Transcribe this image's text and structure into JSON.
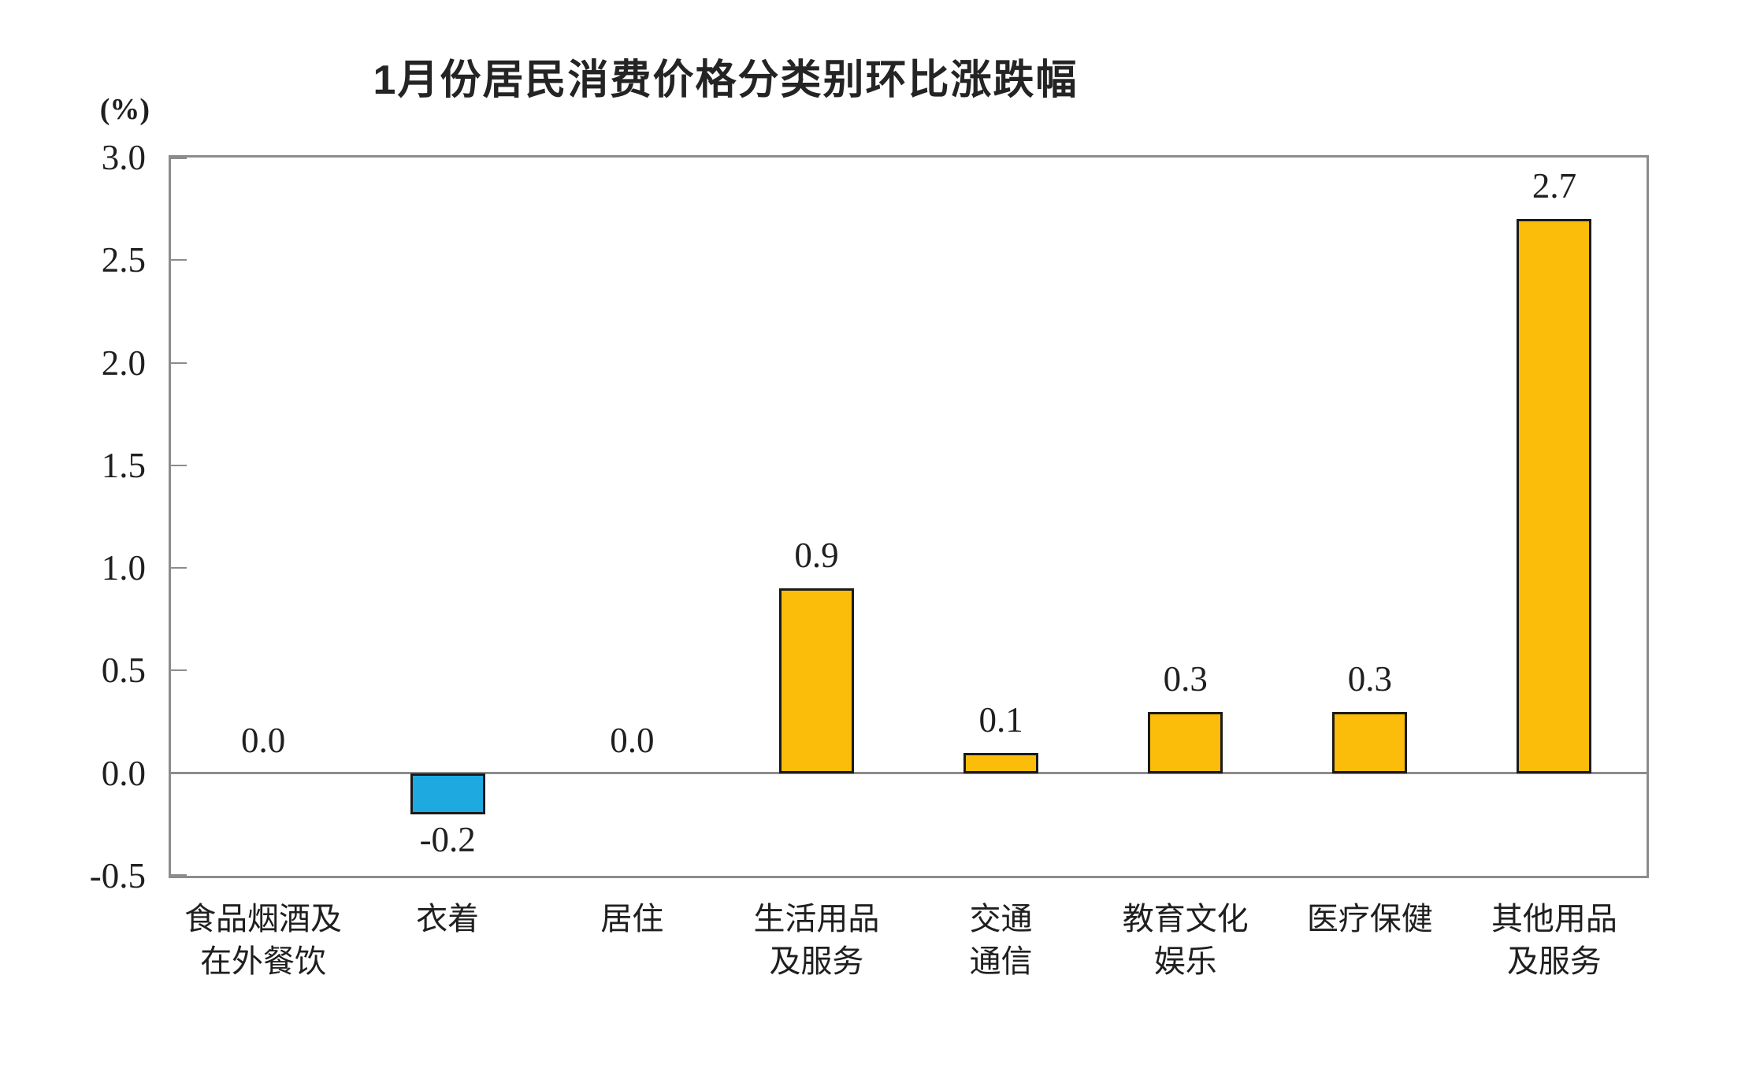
{
  "page": {
    "background": "#ffffff"
  },
  "chart_data": {
    "type": "bar",
    "title": "1月份居民消费价格分类别环比涨跌幅",
    "unit_label": "(%)",
    "categories": [
      "食品烟酒及在外餐饮",
      "衣着",
      "居住",
      "生活用品及服务",
      "交通通信",
      "教育文化娱乐",
      "医疗保健",
      "其他用品及服务"
    ],
    "category_lines": [
      [
        "食品烟酒及",
        "在外餐饮"
      ],
      [
        "衣着"
      ],
      [
        "居住"
      ],
      [
        "生活用品",
        "及服务"
      ],
      [
        "交通",
        "通信"
      ],
      [
        "教育文化",
        "娱乐"
      ],
      [
        "医疗保健"
      ],
      [
        "其他用品",
        "及服务"
      ]
    ],
    "values": [
      0.0,
      -0.2,
      0.0,
      0.9,
      0.1,
      0.3,
      0.3,
      2.7
    ],
    "value_labels": [
      "0.0",
      "-0.2",
      "0.0",
      "0.9",
      "0.1",
      "0.3",
      "0.3",
      "2.7"
    ],
    "xlabel": "",
    "ylabel": "(%)",
    "ylim": [
      -0.5,
      3.0
    ],
    "yticks": [
      3.0,
      2.5,
      2.0,
      1.5,
      1.0,
      0.5,
      0.0,
      -0.5
    ],
    "ytick_labels": [
      "3.0",
      "2.5",
      "2.0",
      "1.5",
      "1.0",
      "0.5",
      "0.0",
      "-0.5"
    ],
    "grid": false,
    "legend_position": "none",
    "colors": {
      "positive_bar": "#FCBD0A",
      "negative_bar": "#1FA9E1",
      "bar_border": "#1A1A1A",
      "axis_line": "#8C8C8C",
      "text": "#1F1F1F"
    }
  }
}
